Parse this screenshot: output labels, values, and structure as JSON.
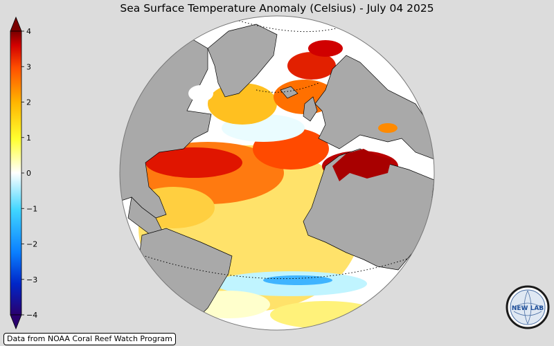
{
  "title": "Sea Surface Temperature Anomaly (Celsius) - July 04 2025",
  "colorbar": {
    "min": -4,
    "max": 4,
    "ticks": [
      "4",
      "3",
      "2",
      "1",
      "0",
      "−1",
      "−2",
      "−3",
      "−4"
    ],
    "extend": "both",
    "stops": [
      "#2a006e",
      "#0026c8",
      "#0a7fff",
      "#41d6ff",
      "#ffffff",
      "#ffff30",
      "#ffb400",
      "#ff5000",
      "#d20000",
      "#780000"
    ]
  },
  "colors": {
    "land": "#a9a9a9",
    "background": "#dcdcdc",
    "coast": "#000000"
  },
  "credit": "Data from NOAA Coral Reef Watch Program",
  "logo": {
    "text": "NEW LAB",
    "icon": "nevlab-globe-logo"
  }
}
